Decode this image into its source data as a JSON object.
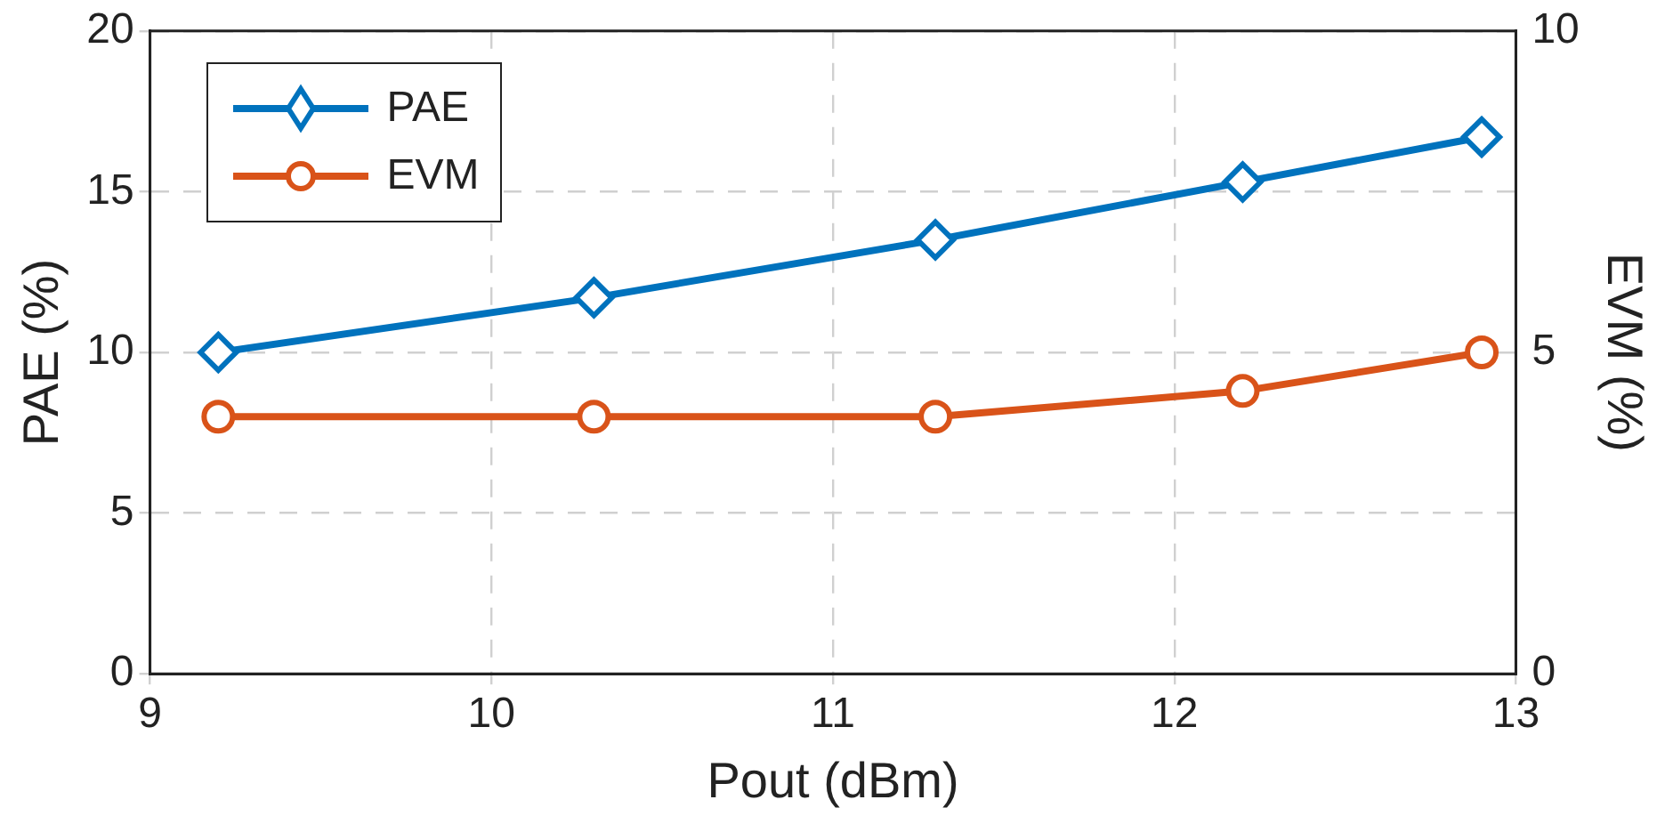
{
  "chart_data": {
    "type": "line",
    "xlabel": "Pout (dBm)",
    "ylabel": "PAE (%)",
    "y2label": "EVM (%)",
    "x": [
      9.2,
      10.3,
      11.3,
      12.2,
      12.9
    ],
    "series": [
      {
        "name": "PAE",
        "color": "#0072bd",
        "marker": "diamond",
        "values": [
          10.0,
          11.7,
          13.5,
          15.3,
          16.7
        ]
      },
      {
        "name": "EVM",
        "color": "#d95319",
        "marker": "circle",
        "axis": "y2",
        "values": [
          4.0,
          4.0,
          4.0,
          4.4,
          5.0
        ]
      }
    ],
    "xlim": [
      9,
      13
    ],
    "xticks": [
      9,
      10,
      11,
      12,
      13
    ],
    "ylim": [
      0,
      20
    ],
    "yticks": [
      0,
      5,
      10,
      15,
      20
    ],
    "y2lim": [
      0,
      10
    ],
    "y2ticks": [
      0,
      5,
      10
    ],
    "grid": true,
    "legend": "top left",
    "line_style": "solid"
  }
}
